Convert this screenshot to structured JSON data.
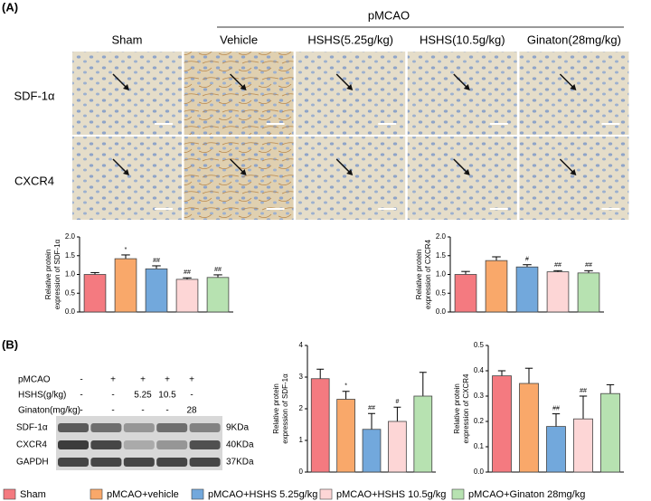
{
  "panel_labels": [
    "(A)",
    "(B)"
  ],
  "group_label": "pMCAO",
  "columns": [
    "Sham",
    "Vehicle",
    "HSHS(5.25g/kg)",
    "HSHS(10.5g/kg)",
    "Ginaton(28mg/kg)"
  ],
  "rows": [
    "SDF-1α",
    "CXCR4"
  ],
  "blot": {
    "conditions": [
      {
        "label": "pMCAO",
        "values": [
          "-",
          "+",
          "+",
          "+",
          "+"
        ]
      },
      {
        "label": "HSHS(g/kg)",
        "values": [
          "-",
          "-",
          "5.25",
          "10.5",
          "-"
        ]
      },
      {
        "label": "Ginaton(mg/kg)",
        "values": [
          "-",
          "-",
          "-",
          "-",
          "28"
        ]
      }
    ],
    "bands": [
      {
        "label": "SDF-1α",
        "size": "9KDa"
      },
      {
        "label": "CXCR4",
        "size": "40KDa"
      },
      {
        "label": "GAPDH",
        "size": "37KDa"
      }
    ]
  },
  "legend": [
    {
      "name": "Sham",
      "color": "#f47a80"
    },
    {
      "name": "pMCAO+vehicle",
      "color": "#f9a86a"
    },
    {
      "name": "pMCAO+HSHS 5.25g/kg",
      "color": "#72a8dc"
    },
    {
      "name": "pMCAO+HSHS 10.5g/kg",
      "color": "#fdd6d6"
    },
    {
      "name": "pMCAO+Ginaton 28mg/kg",
      "color": "#b7e2b1"
    }
  ],
  "chart_data": [
    {
      "type": "bar",
      "ylabel": [
        "Relative protein",
        "expression of SDF-1α"
      ],
      "values": [
        1.0,
        1.42,
        1.15,
        0.87,
        0.92
      ],
      "errors": [
        0.05,
        0.1,
        0.08,
        0.04,
        0.07
      ],
      "annotations": [
        null,
        "*",
        "##",
        "##",
        "##"
      ],
      "ylim": [
        0,
        2
      ],
      "yticks": [
        {
          "value": 0,
          "label": "0.0"
        },
        0.5,
        {
          "value": 1,
          "label": "1.0"
        },
        1.5,
        {
          "value": 2,
          "label": "2.0"
        }
      ]
    },
    {
      "type": "bar",
      "ylabel": [
        "Relative protein",
        "expression of CXCR4"
      ],
      "values": [
        1.0,
        1.37,
        1.2,
        1.07,
        1.04
      ],
      "errors": [
        0.08,
        0.1,
        0.06,
        0.03,
        0.06
      ],
      "annotations": [
        null,
        null,
        "#",
        "##",
        "##"
      ],
      "ylim": [
        0,
        2
      ],
      "yticks": [
        {
          "value": 0,
          "label": "0.0"
        },
        0.5,
        {
          "value": 1,
          "label": "1.0"
        },
        1.5,
        {
          "value": 2,
          "label": "2.0"
        }
      ]
    },
    {
      "type": "bar",
      "ylabel": [
        "Relative protein",
        "expression of SDF-1α"
      ],
      "values": [
        2.95,
        2.3,
        1.35,
        1.6,
        2.4
      ],
      "errors": [
        0.3,
        0.25,
        0.5,
        0.45,
        0.75
      ],
      "annotations": [
        null,
        "*",
        "##",
        "#",
        null
      ],
      "ylim": [
        0,
        4
      ],
      "yticks": [
        0,
        1,
        2,
        3,
        4
      ]
    },
    {
      "type": "bar",
      "ylabel": [
        "Relative protein",
        "expression of CXCR4"
      ],
      "values": [
        0.38,
        0.35,
        0.18,
        0.21,
        0.31
      ],
      "errors": [
        0.02,
        0.06,
        0.05,
        0.09,
        0.035
      ],
      "annotations": [
        null,
        null,
        "##",
        "##",
        null
      ],
      "ylim": [
        0,
        0.5
      ],
      "yticks": [
        {
          "value": 0,
          "label": "0.0"
        },
        0.1,
        0.2,
        0.3,
        0.4,
        0.5
      ]
    }
  ]
}
